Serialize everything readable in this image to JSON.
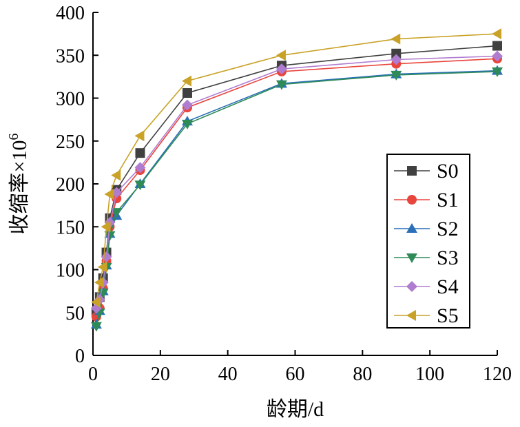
{
  "chart_data": {
    "type": "line",
    "xlabel": "龄期/d",
    "ylabel": "收缩率×10",
    "ylabel_sup": "6",
    "xlim": [
      0,
      120
    ],
    "ylim": [
      0,
      400
    ],
    "xticks": [
      0,
      20,
      40,
      60,
      80,
      100,
      120
    ],
    "yticks": [
      0,
      50,
      100,
      150,
      200,
      250,
      300,
      350,
      400
    ],
    "grid": false,
    "legend_position": "right",
    "series": [
      {
        "name": "S0",
        "color": "#404040",
        "marker": "square",
        "x": [
          1,
          2,
          3,
          4,
          5,
          7,
          14,
          28,
          56,
          90,
          120
        ],
        "y": [
          50,
          68,
          90,
          120,
          160,
          193,
          236,
          306,
          338,
          352,
          361
        ]
      },
      {
        "name": "S1",
        "color": "#e8453c",
        "marker": "circle",
        "x": [
          1,
          2,
          3,
          4,
          5,
          7,
          14,
          28,
          56,
          90,
          120
        ],
        "y": [
          45,
          55,
          78,
          110,
          150,
          183,
          216,
          289,
          331,
          340,
          346
        ]
      },
      {
        "name": "S2",
        "color": "#2a6fb8",
        "marker": "triangle-up",
        "x": [
          1,
          2,
          3,
          4,
          5,
          7,
          14,
          28,
          56,
          90,
          120
        ],
        "y": [
          36,
          52,
          75,
          105,
          142,
          163,
          200,
          273,
          317,
          328,
          332
        ]
      },
      {
        "name": "S3",
        "color": "#2e8b57",
        "marker": "triangle-down",
        "x": [
          1,
          2,
          3,
          4,
          5,
          7,
          14,
          28,
          56,
          90,
          120
        ],
        "y": [
          34,
          50,
          73,
          103,
          140,
          167,
          199,
          270,
          316,
          327,
          331
        ]
      },
      {
        "name": "S4",
        "color": "#b07cd0",
        "marker": "diamond",
        "x": [
          1,
          2,
          3,
          4,
          5,
          7,
          14,
          28,
          56,
          90,
          120
        ],
        "y": [
          55,
          65,
          85,
          115,
          155,
          190,
          219,
          292,
          334,
          345,
          349
        ]
      },
      {
        "name": "S5",
        "color": "#c9a227",
        "marker": "triangle-left",
        "x": [
          1,
          2,
          3,
          4,
          5,
          7,
          14,
          28,
          56,
          90,
          120
        ],
        "y": [
          62,
          85,
          103,
          150,
          188,
          210,
          256,
          320,
          350,
          369,
          375
        ]
      }
    ]
  }
}
